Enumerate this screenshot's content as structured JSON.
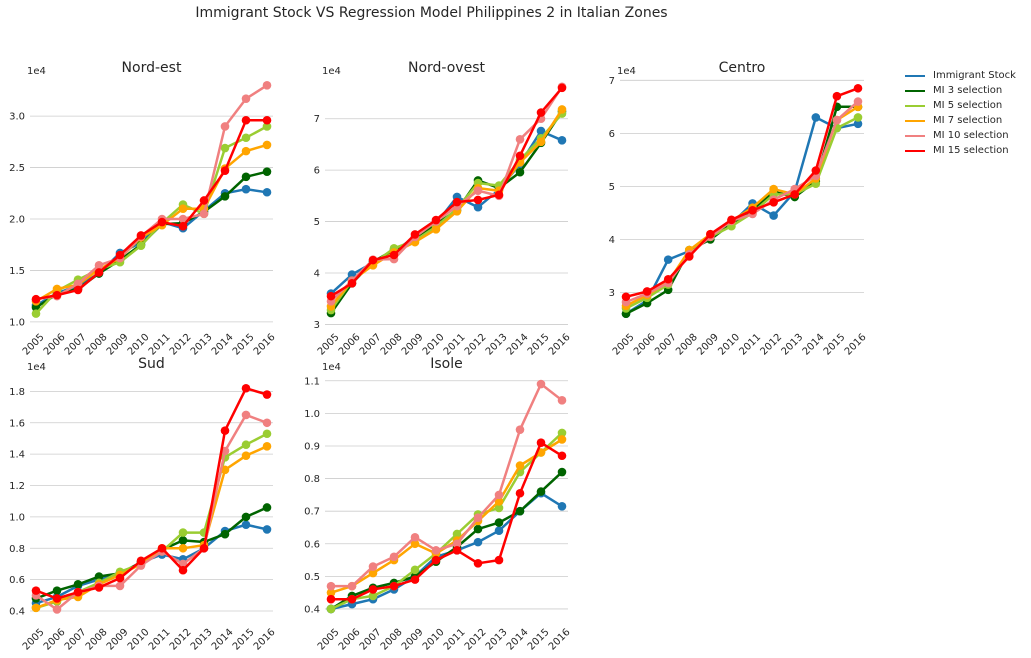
{
  "title": "Immigrant Stock VS Regression Model Philippines 2 in Italian Zones",
  "colors": {
    "Immigrant Stock": "#1f77b4",
    "MI 3 selection": "#006400",
    "MI 5 selection": "#9acd32",
    "MI 7 selection": "#ffa500",
    "MI 10 selection": "#f08080",
    "MI 15 selection": "#ff0000"
  },
  "legend": [
    "Immigrant Stock",
    "MI 3 selection",
    "MI 5 selection",
    "MI 7 selection",
    "MI 10 selection",
    "MI 15 selection"
  ],
  "chart_data": [
    {
      "type": "line",
      "title": "Nord-est",
      "scale_label": "1e4",
      "x": [
        "2005",
        "2006",
        "2007",
        "2008",
        "2009",
        "2010",
        "2011",
        "2012",
        "2013",
        "2014",
        "2015",
        "2016"
      ],
      "ylim": [
        0.95,
        3.4
      ],
      "yticks": [
        1.0,
        1.5,
        2.0,
        2.5,
        3.0
      ],
      "ytick_labels": [
        "1.0",
        "1.5",
        "2.0",
        "2.5",
        "3.0"
      ],
      "series": [
        {
          "name": "Immigrant Stock",
          "values": [
            1.16,
            1.28,
            1.35,
            1.47,
            1.67,
            1.77,
            1.97,
            1.91,
            2.08,
            2.25,
            2.29,
            2.26
          ]
        },
        {
          "name": "MI 3 selection",
          "values": [
            1.14,
            1.27,
            1.32,
            1.47,
            1.6,
            1.75,
            1.95,
            1.96,
            2.07,
            2.22,
            2.41,
            2.46
          ]
        },
        {
          "name": "MI 5 selection",
          "values": [
            1.08,
            1.3,
            1.41,
            1.51,
            1.58,
            1.74,
            1.96,
            2.14,
            2.05,
            2.69,
            2.79,
            2.9
          ]
        },
        {
          "name": "MI 7 selection",
          "values": [
            1.2,
            1.32,
            1.36,
            1.51,
            1.62,
            1.82,
            1.94,
            2.1,
            2.1,
            2.49,
            2.66,
            2.72
          ]
        },
        {
          "name": "MI 10 selection",
          "values": [
            1.22,
            1.25,
            1.37,
            1.55,
            1.62,
            1.83,
            2.0,
            2.0,
            2.05,
            2.9,
            3.17,
            3.3
          ]
        },
        {
          "name": "MI 15 selection",
          "values": [
            1.22,
            1.26,
            1.31,
            1.48,
            1.65,
            1.84,
            1.97,
            1.93,
            2.18,
            2.47,
            2.96,
            2.96
          ]
        }
      ]
    },
    {
      "type": "line",
      "title": "Nord-ovest",
      "scale_label": "1e4",
      "x": [
        "2005",
        "2006",
        "2007",
        "2008",
        "2009",
        "2010",
        "2011",
        "2012",
        "2013",
        "2014",
        "2015",
        "2016"
      ],
      "ylim": [
        2.95,
        7.85
      ],
      "yticks": [
        3,
        4,
        5,
        6,
        7
      ],
      "ytick_labels": [
        "3",
        "4",
        "5",
        "6",
        "7"
      ],
      "series": [
        {
          "name": "Immigrant Stock",
          "values": [
            3.6,
            3.97,
            4.2,
            4.42,
            4.7,
            4.96,
            5.48,
            5.28,
            5.62,
            6.12,
            6.76,
            6.58
          ]
        },
        {
          "name": "MI 3 selection",
          "values": [
            3.22,
            3.8,
            4.22,
            4.45,
            4.65,
            4.95,
            5.22,
            5.8,
            5.65,
            5.96,
            6.53,
            7.14
          ]
        },
        {
          "name": "MI 5 selection",
          "values": [
            3.28,
            3.85,
            4.18,
            4.48,
            4.63,
            4.9,
            5.25,
            5.75,
            5.7,
            6.2,
            6.62,
            7.1
          ]
        },
        {
          "name": "MI 7 selection",
          "values": [
            3.35,
            3.85,
            4.15,
            4.4,
            4.6,
            4.85,
            5.2,
            5.65,
            5.6,
            6.15,
            6.55,
            7.18
          ]
        },
        {
          "name": "MI 10 selection",
          "values": [
            3.45,
            3.85,
            4.26,
            4.27,
            4.7,
            5.0,
            5.3,
            5.6,
            5.5,
            6.6,
            7.0,
            7.62
          ]
        },
        {
          "name": "MI 15 selection",
          "values": [
            3.55,
            3.8,
            4.25,
            4.35,
            4.75,
            5.03,
            5.38,
            5.42,
            5.52,
            6.28,
            7.12,
            7.6
          ]
        }
      ]
    },
    {
      "type": "line",
      "title": "Centro",
      "scale_label": "1e4",
      "x": [
        "2005",
        "2006",
        "2007",
        "2008",
        "2009",
        "2010",
        "2011",
        "2012",
        "2013",
        "2014",
        "2015",
        "2016"
      ],
      "ylim": [
        2.35,
        7.1
      ],
      "yticks": [
        3,
        4,
        5,
        6,
        7
      ],
      "ytick_labels": [
        "3",
        "4",
        "5",
        "6",
        "7"
      ],
      "series": [
        {
          "name": "Immigrant Stock",
          "values": [
            2.6,
            2.85,
            3.62,
            3.78,
            4.05,
            4.3,
            4.68,
            4.45,
            4.9,
            6.3,
            6.1,
            6.18
          ]
        },
        {
          "name": "MI 3 selection",
          "values": [
            2.6,
            2.8,
            3.05,
            3.8,
            4.0,
            4.3,
            4.55,
            4.9,
            4.8,
            5.1,
            6.5,
            6.5
          ]
        },
        {
          "name": "MI 5 selection",
          "values": [
            2.7,
            2.9,
            3.15,
            3.8,
            4.05,
            4.25,
            4.5,
            4.85,
            4.85,
            5.05,
            6.1,
            6.3
          ]
        },
        {
          "name": "MI 7 selection",
          "values": [
            2.75,
            2.95,
            3.2,
            3.8,
            4.1,
            4.35,
            4.6,
            4.95,
            4.85,
            5.15,
            6.25,
            6.5
          ]
        },
        {
          "name": "MI 10 selection",
          "values": [
            2.82,
            2.98,
            3.18,
            3.72,
            4.05,
            4.35,
            4.48,
            4.75,
            4.95,
            5.2,
            6.25,
            6.6
          ]
        },
        {
          "name": "MI 15 selection",
          "values": [
            2.92,
            3.02,
            3.25,
            3.68,
            4.1,
            4.37,
            4.55,
            4.7,
            4.85,
            5.3,
            6.7,
            6.85
          ]
        }
      ]
    },
    {
      "type": "line",
      "title": "Sud",
      "scale_label": "1e4",
      "x": [
        "2005",
        "2006",
        "2007",
        "2008",
        "2009",
        "2010",
        "2011",
        "2012",
        "2013",
        "2014",
        "2015",
        "2016"
      ],
      "ylim": [
        0.33,
        1.93
      ],
      "yticks": [
        0.4,
        0.6,
        0.8,
        1.0,
        1.2,
        1.4,
        1.6,
        1.8
      ],
      "ytick_labels": [
        "0.4",
        "0.6",
        "0.8",
        "1.0",
        "1.2",
        "1.4",
        "1.6",
        "1.8"
      ],
      "series": [
        {
          "name": "Immigrant Stock",
          "values": [
            0.45,
            0.49,
            0.56,
            0.6,
            0.64,
            0.71,
            0.76,
            0.73,
            0.8,
            0.91,
            0.95,
            0.92
          ]
        },
        {
          "name": "MI 3 selection",
          "values": [
            0.48,
            0.53,
            0.57,
            0.62,
            0.64,
            0.71,
            0.79,
            0.85,
            0.84,
            0.89,
            1.0,
            1.06
          ]
        },
        {
          "name": "MI 5 selection",
          "values": [
            0.42,
            0.46,
            0.52,
            0.58,
            0.65,
            0.7,
            0.78,
            0.9,
            0.9,
            1.38,
            1.46,
            1.53
          ]
        },
        {
          "name": "MI 7 selection",
          "values": [
            0.42,
            0.47,
            0.49,
            0.57,
            0.63,
            0.7,
            0.8,
            0.8,
            0.82,
            1.3,
            1.39,
            1.45
          ]
        },
        {
          "name": "MI 10 selection",
          "values": [
            0.5,
            0.41,
            0.52,
            0.56,
            0.56,
            0.69,
            0.78,
            0.7,
            0.8,
            1.42,
            1.65,
            1.6
          ]
        },
        {
          "name": "MI 15 selection",
          "values": [
            0.53,
            0.48,
            0.52,
            0.55,
            0.61,
            0.72,
            0.8,
            0.66,
            0.8,
            1.55,
            1.82,
            1.78
          ]
        }
      ]
    },
    {
      "type": "line",
      "title": "Isole",
      "scale_label": "1e4",
      "x": [
        "2005",
        "2006",
        "2007",
        "2008",
        "2009",
        "2010",
        "2011",
        "2012",
        "2013",
        "2014",
        "2015",
        "2016"
      ],
      "ylim": [
        0.36,
        1.13
      ],
      "yticks": [
        0.4,
        0.5,
        0.6,
        0.7,
        0.8,
        0.9,
        1.0,
        1.1
      ],
      "ytick_labels": [
        "0.4",
        "0.5",
        "0.6",
        "0.7",
        "0.8",
        "0.9",
        "1.0",
        "1.1"
      ],
      "series": [
        {
          "name": "Immigrant Stock",
          "values": [
            0.4,
            0.415,
            0.43,
            0.46,
            0.5,
            0.56,
            0.58,
            0.605,
            0.64,
            0.7,
            0.755,
            0.715
          ]
        },
        {
          "name": "MI 3 selection",
          "values": [
            0.4,
            0.44,
            0.465,
            0.48,
            0.5,
            0.545,
            0.59,
            0.645,
            0.665,
            0.7,
            0.76,
            0.82
          ]
        },
        {
          "name": "MI 5 selection",
          "values": [
            0.4,
            0.43,
            0.44,
            0.47,
            0.52,
            0.57,
            0.63,
            0.69,
            0.71,
            0.82,
            0.88,
            0.94
          ]
        },
        {
          "name": "MI 7 selection",
          "values": [
            0.45,
            0.47,
            0.51,
            0.55,
            0.6,
            0.57,
            0.61,
            0.67,
            0.73,
            0.84,
            0.88,
            0.92
          ]
        },
        {
          "name": "MI 10 selection",
          "values": [
            0.47,
            0.47,
            0.53,
            0.56,
            0.62,
            0.58,
            0.6,
            0.68,
            0.75,
            0.95,
            1.09,
            1.04
          ]
        },
        {
          "name": "MI 15 selection",
          "values": [
            0.43,
            0.43,
            0.46,
            0.47,
            0.49,
            0.55,
            0.58,
            0.54,
            0.55,
            0.755,
            0.91,
            0.87
          ]
        }
      ]
    }
  ]
}
